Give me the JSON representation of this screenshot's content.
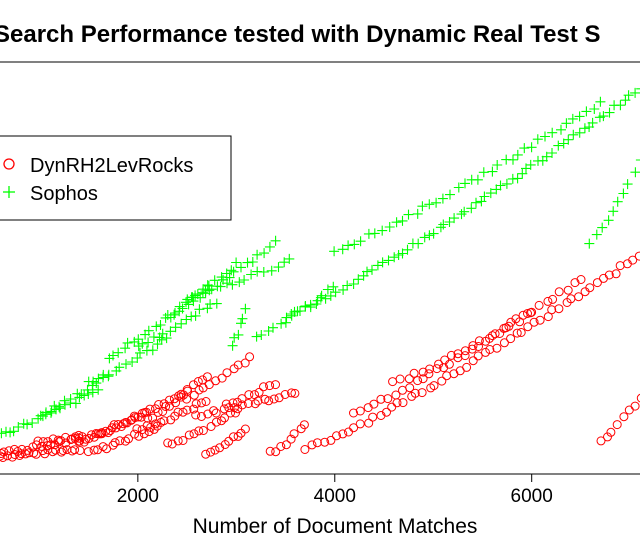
{
  "chart_data": {
    "type": "scatter",
    "title": "Search Performance tested with Dynamic Real Test S",
    "xlabel": "Number of Document Matches",
    "ylabel": "",
    "xlim": [
      600,
      7100
    ],
    "ylim": [
      0,
      1
    ],
    "xticks": [
      {
        "value": 2000,
        "label": "2000"
      },
      {
        "value": 4000,
        "label": "4000"
      },
      {
        "value": 6000,
        "label": "6000"
      }
    ],
    "legend": {
      "placement": "top-left",
      "entries": [
        {
          "name": "DynRH2LevRocks",
          "marker": "circle",
          "color": "#ff0000"
        },
        {
          "name": "Sophos",
          "marker": "plus",
          "color": "#00ff00"
        }
      ]
    },
    "series": [
      {
        "name": "DynRH2LevRocks",
        "marker": "circle",
        "color": "#ff0000",
        "segments": [
          {
            "x": [
              600,
              1400
            ],
            "y": [
              0.0,
              0.02
            ],
            "n": 22
          },
          {
            "x": [
              600,
              1400
            ],
            "y": [
              0.01,
              0.045
            ],
            "n": 18
          },
          {
            "x": [
              1000,
              1400
            ],
            "y": [
              0.04,
              0.055
            ],
            "n": 10
          },
          {
            "x": [
              1400,
              2100
            ],
            "y": [
              0.045,
              0.12
            ],
            "n": 18
          },
          {
            "x": [
              1400,
              2500
            ],
            "y": [
              0.04,
              0.175
            ],
            "n": 24
          },
          {
            "x": [
              1500,
              2200
            ],
            "y": [
              0.01,
              0.08
            ],
            "n": 16
          },
          {
            "x": [
              2000,
              2700
            ],
            "y": [
              0.07,
              0.15
            ],
            "n": 16
          },
          {
            "x": [
              2100,
              2700
            ],
            "y": [
              0.1,
              0.22
            ],
            "n": 14
          },
          {
            "x": [
              2300,
              3000
            ],
            "y": [
              0.03,
              0.12
            ],
            "n": 14
          },
          {
            "x": [
              2500,
              3150
            ],
            "y": [
              0.16,
              0.27
            ],
            "n": 12
          },
          {
            "x": [
              2600,
              3600
            ],
            "y": [
              0.11,
              0.175
            ],
            "n": 20
          },
          {
            "x": [
              2700,
              3100
            ],
            "y": [
              0.01,
              0.07
            ],
            "n": 10
          },
          {
            "x": [
              2900,
              3400
            ],
            "y": [
              0.14,
              0.2
            ],
            "n": 10
          },
          {
            "x": [
              3350,
              3700
            ],
            "y": [
              0.01,
              0.08
            ],
            "n": 8
          },
          {
            "x": [
              3700,
              7100
            ],
            "y": [
              0.02,
              0.545
            ],
            "n": 55
          },
          {
            "x": [
              4200,
              6500
            ],
            "y": [
              0.12,
              0.48
            ],
            "n": 34
          },
          {
            "x": [
              4600,
              6000
            ],
            "y": [
              0.2,
              0.39
            ],
            "n": 20
          },
          {
            "x": [
              6700,
              7100
            ],
            "y": [
              0.04,
              0.16
            ],
            "n": 8
          }
        ]
      },
      {
        "name": "Sophos",
        "marker": "plus",
        "color": "#00ff00",
        "segments": [
          {
            "x": [
              600,
              1600
            ],
            "y": [
              0.06,
              0.18
            ],
            "n": 22
          },
          {
            "x": [
              1000,
              1700
            ],
            "y": [
              0.11,
              0.22
            ],
            "n": 14
          },
          {
            "x": [
              1500,
              2300
            ],
            "y": [
              0.2,
              0.32
            ],
            "n": 16
          },
          {
            "x": [
              1700,
              2700
            ],
            "y": [
              0.27,
              0.46
            ],
            "n": 20
          },
          {
            "x": [
              2000,
              2800
            ],
            "y": [
              0.3,
              0.42
            ],
            "n": 16
          },
          {
            "x": [
              2300,
              3000
            ],
            "y": [
              0.38,
              0.52
            ],
            "n": 14
          },
          {
            "x": [
              2500,
              3400
            ],
            "y": [
              0.42,
              0.58
            ],
            "n": 16
          },
          {
            "x": [
              2700,
              3550
            ],
            "y": [
              0.45,
              0.53
            ],
            "n": 14
          },
          {
            "x": [
              2950,
              3100
            ],
            "y": [
              0.3,
              0.4
            ],
            "n": 6
          },
          {
            "x": [
              3200,
              4000
            ],
            "y": [
              0.32,
              0.46
            ],
            "n": 14
          },
          {
            "x": [
              3500,
              7100
            ],
            "y": [
              0.38,
              1.0
            ],
            "n": 70
          },
          {
            "x": [
              4000,
              6700
            ],
            "y": [
              0.56,
              0.96
            ],
            "n": 40
          },
          {
            "x": [
              6600,
              7100
            ],
            "y": [
              0.58,
              0.8
            ],
            "n": 10
          }
        ]
      }
    ]
  }
}
